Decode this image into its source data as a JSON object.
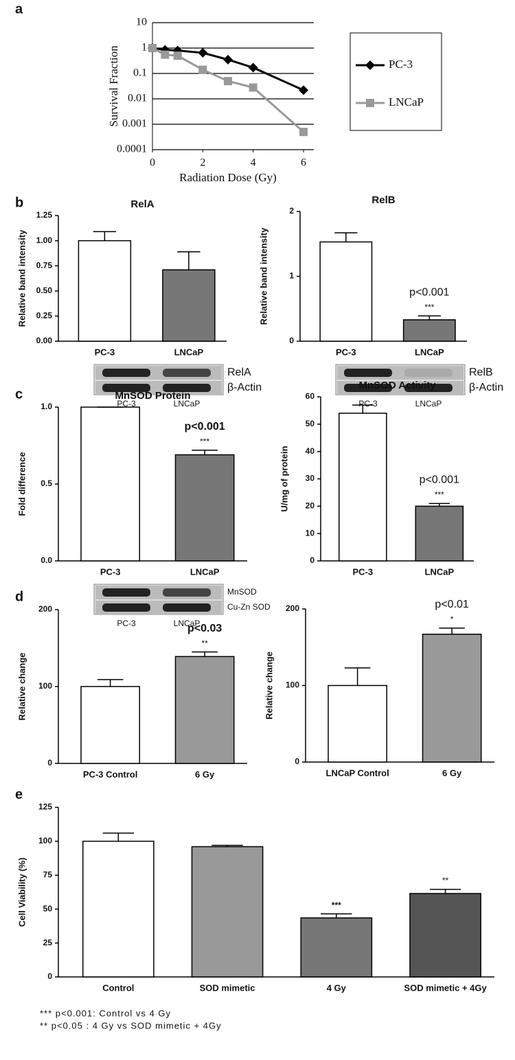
{
  "chart_data": [
    {
      "type": "line",
      "panel": "a",
      "xlabel": "Radiation Dose (Gy)",
      "ylabel": "Survival Fraction",
      "log_y": true,
      "grid": true,
      "x": [
        0,
        0.5,
        1,
        2,
        3,
        4,
        6
      ],
      "xlim": [
        0,
        6
      ],
      "xticks": [
        0,
        2,
        4,
        6
      ],
      "ylim": [
        0.0001,
        10
      ],
      "yticks": [
        0.0001,
        0.001,
        0.01,
        0.1,
        1,
        10
      ],
      "legend": "right",
      "series": [
        {
          "name": "PC-3",
          "color": "#000000",
          "marker": "diamond",
          "values": [
            1,
            0.85,
            0.8,
            0.65,
            0.35,
            0.17,
            0.022
          ]
        },
        {
          "name": "LNCaP",
          "color": "#999999",
          "marker": "square",
          "values": [
            1,
            0.55,
            0.5,
            0.14,
            0.05,
            0.028,
            0.0005
          ]
        }
      ]
    },
    {
      "type": "bar",
      "panel": "b",
      "title": "RelA",
      "ylabel": "Relative band intensity",
      "categories": [
        "PC-3",
        "LNCaP"
      ],
      "values": [
        1.0,
        0.71
      ],
      "errors": [
        0.09,
        0.18
      ],
      "colors": [
        "#ffffff",
        "#777777"
      ],
      "ylim": [
        0,
        1.25
      ],
      "yticks": [
        {
          "value": 0,
          "label": "0.00"
        },
        {
          "value": 0.25,
          "label": "0.25"
        },
        {
          "value": 0.5,
          "label": "0.50"
        },
        {
          "value": 0.75,
          "label": "0.75"
        },
        {
          "value": 1,
          "label": "1.00"
        },
        {
          "value": 1.25,
          "label": "1.25"
        }
      ],
      "blot": {
        "rows": [
          "RelA",
          "β-Actin"
        ],
        "lanes": [
          "PC-3",
          "LNCaP"
        ]
      }
    },
    {
      "type": "bar",
      "title": "RelB",
      "ylabel": "Relative band intensity",
      "categories": [
        "PC-3",
        "LNCaP"
      ],
      "values": [
        1.53,
        0.33
      ],
      "errors": [
        0.14,
        0.06
      ],
      "colors": [
        "#ffffff",
        "#777777"
      ],
      "ylim": [
        0,
        2
      ],
      "yticks": [
        0,
        1,
        2
      ],
      "annotations": [
        {
          "category": "LNCaP",
          "text": "p<0.001"
        },
        {
          "category": "LNCaP",
          "text": "***"
        }
      ],
      "blot": {
        "rows": [
          "RelB",
          "β-Actin"
        ],
        "lanes": [
          "PC-3",
          "LNCaP"
        ]
      }
    },
    {
      "type": "bar",
      "panel": "c",
      "title": "MnSOD Protein",
      "ylabel": "Fold difference",
      "categories": [
        "PC-3",
        "LNCaP"
      ],
      "values": [
        1.0,
        0.69
      ],
      "errors": [
        0,
        0.03
      ],
      "colors": [
        "#ffffff",
        "#777777"
      ],
      "ylim": [
        0,
        1
      ],
      "yticks": [
        {
          "value": 0,
          "label": "0.0"
        },
        {
          "value": 0.5,
          "label": "0.5"
        },
        {
          "value": 1,
          "label": "1.0"
        }
      ],
      "annotations": [
        {
          "category": "LNCaP",
          "text": "p<0.001"
        },
        {
          "category": "LNCaP",
          "text": "***"
        }
      ],
      "blot": {
        "rows": [
          "MnSOD",
          "Cu-Zn SOD"
        ],
        "lanes": [
          "PC-3",
          "LNCaP"
        ]
      }
    },
    {
      "type": "bar",
      "title": "MnSOD Activity",
      "ylabel": "U/mg of protein",
      "categories": [
        "PC-3",
        "LNCaP"
      ],
      "values": [
        54,
        20
      ],
      "errors": [
        3,
        1
      ],
      "colors": [
        "#ffffff",
        "#777777"
      ],
      "ylim": [
        0,
        60
      ],
      "yticks": [
        0,
        10,
        20,
        30,
        40,
        50,
        60
      ],
      "annotations": [
        {
          "category": "LNCaP",
          "text": "p<0.001"
        },
        {
          "category": "LNCaP",
          "text": "***"
        }
      ]
    },
    {
      "type": "bar",
      "panel": "d",
      "ylabel": "Relative change",
      "categories": [
        "PC-3 Control",
        "6 Gy"
      ],
      "values": [
        100,
        139
      ],
      "errors": [
        9,
        6
      ],
      "colors": [
        "#ffffff",
        "#999999"
      ],
      "ylim": [
        0,
        200
      ],
      "yticks": [
        0,
        100,
        200
      ],
      "annotations": [
        {
          "category": "6 Gy",
          "text": "p<0.03"
        },
        {
          "category": "6 Gy",
          "text": "**"
        }
      ]
    },
    {
      "type": "bar",
      "ylabel": "Relative change",
      "categories": [
        "LNCaP Control",
        "6 Gy"
      ],
      "values": [
        100,
        167
      ],
      "errors": [
        23,
        8
      ],
      "colors": [
        "#ffffff",
        "#999999"
      ],
      "ylim": [
        0,
        200
      ],
      "yticks": [
        0,
        100,
        200
      ],
      "annotations": [
        {
          "category": "6 Gy",
          "text": "p<0.01"
        },
        {
          "category": "6 Gy",
          "text": "*"
        }
      ]
    },
    {
      "type": "bar",
      "panel": "e",
      "ylabel": "Cell Viability (%)",
      "categories": [
        "Control",
        "SOD mimetic",
        "4 Gy",
        "SOD mimetic + 4Gy"
      ],
      "values": [
        100,
        96,
        43.5,
        61.5
      ],
      "errors": [
        6,
        1,
        3,
        3
      ],
      "colors": [
        "#ffffff",
        "#999999",
        "#777777",
        "#555555"
      ],
      "ylim": [
        0,
        125
      ],
      "yticks": [
        0,
        25,
        50,
        75,
        100,
        125
      ],
      "annotations": [
        {
          "category": "4 Gy",
          "text": "***"
        },
        {
          "category": "SOD mimetic + 4Gy",
          "text": "**"
        }
      ],
      "notes": [
        "*** p<0.001: Control vs 4 Gy",
        "**  p<0.05  : 4 Gy vs SOD mimetic + 4Gy"
      ]
    }
  ]
}
